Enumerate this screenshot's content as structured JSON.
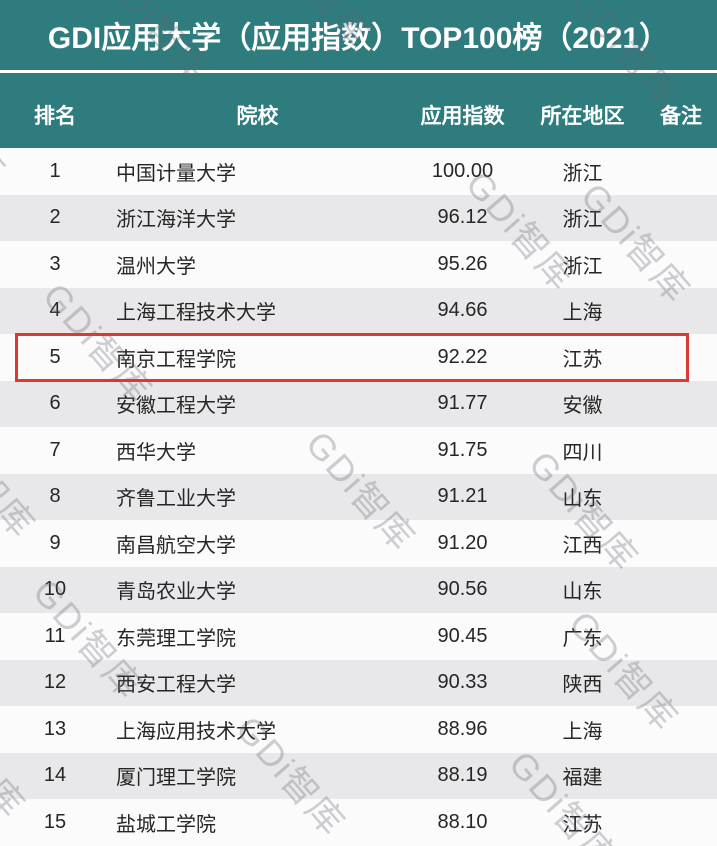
{
  "header": {
    "title": "GDI应用大学（应用指数）TOP100榜（2021）",
    "accent_color": "#2f7c7f",
    "title_color": "#ffffff"
  },
  "table": {
    "columns": [
      "排名",
      "院校",
      "应用指数",
      "所在地区",
      "备注"
    ],
    "rows": [
      [
        "1",
        "中国计量大学",
        "100.00",
        "浙江",
        ""
      ],
      [
        "2",
        "浙江海洋大学",
        "96.12",
        "浙江",
        ""
      ],
      [
        "3",
        "温州大学",
        "95.26",
        "浙江",
        ""
      ],
      [
        "4",
        "上海工程技术大学",
        "94.66",
        "上海",
        ""
      ],
      [
        "5",
        "南京工程学院",
        "92.22",
        "江苏",
        ""
      ],
      [
        "6",
        "安徽工程大学",
        "91.77",
        "安徽",
        ""
      ],
      [
        "7",
        "西华大学",
        "91.75",
        "四川",
        ""
      ],
      [
        "8",
        "齐鲁工业大学",
        "91.21",
        "山东",
        ""
      ],
      [
        "9",
        "南昌航空大学",
        "91.20",
        "江西",
        ""
      ],
      [
        "10",
        "青岛农业大学",
        "90.56",
        "山东",
        ""
      ],
      [
        "11",
        "东莞理工学院",
        "90.45",
        "广东",
        ""
      ],
      [
        "12",
        "西安工程大学",
        "90.33",
        "陕西",
        ""
      ],
      [
        "13",
        "上海应用技术大学",
        "88.96",
        "上海",
        ""
      ],
      [
        "14",
        "厦门理工学院",
        "88.19",
        "福建",
        ""
      ],
      [
        "15",
        "盐城工学院",
        "88.10",
        "江苏",
        ""
      ]
    ],
    "zebra_color": "#e8e8ea",
    "highlight": {
      "rank": "5",
      "school": "南京工程学院",
      "border_color": "#dd3835"
    }
  },
  "watermark": {
    "text": "GDi智库",
    "color": "rgba(100,100,110,0.30)",
    "rotation_deg": 49,
    "positions": [
      [
        130,
        -50
      ],
      [
        290,
        -85
      ],
      [
        600,
        -25
      ],
      [
        -75,
        50
      ],
      [
        495,
        158
      ],
      [
        610,
        170
      ],
      [
        72,
        270
      ],
      [
        -45,
        405
      ],
      [
        335,
        418
      ],
      [
        558,
        438
      ],
      [
        62,
        566
      ],
      [
        598,
        598
      ],
      [
        -55,
        685
      ],
      [
        265,
        703
      ],
      [
        538,
        738
      ]
    ]
  }
}
